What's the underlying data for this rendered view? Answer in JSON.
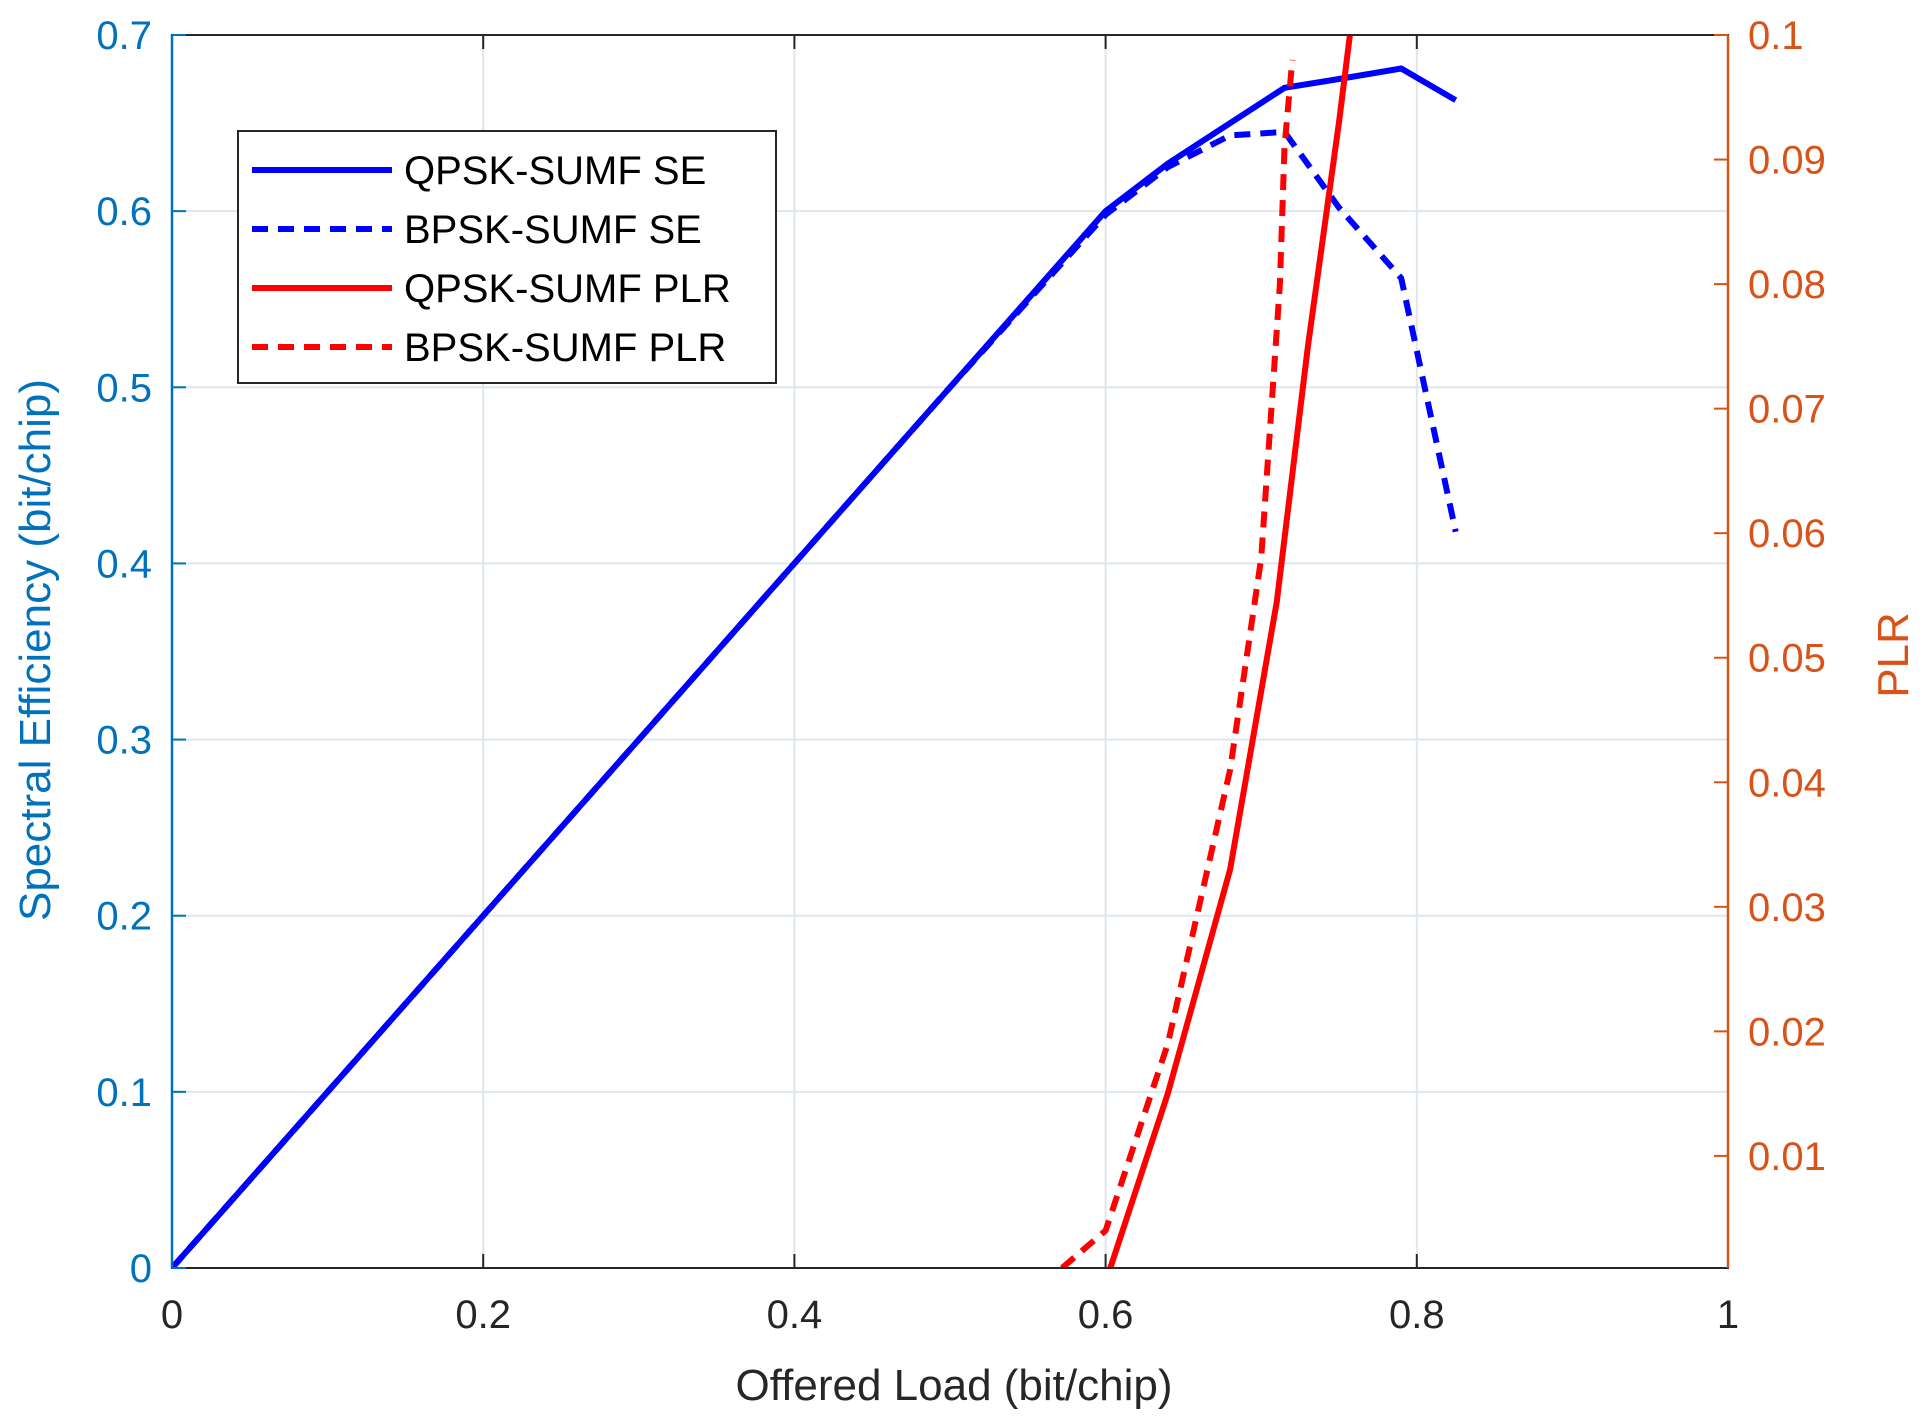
{
  "chart_data": {
    "type": "line",
    "title": "",
    "xlabel": "Offered Load (bit/chip)",
    "ylabel_left": "Spectral Efficiency (bit/chip)",
    "ylabel_right": "PLR",
    "xlim": [
      0,
      1
    ],
    "ylim_left": [
      0,
      0.7
    ],
    "ylim_right": [
      0.001,
      0.1
    ],
    "x_ticks": [
      "0",
      "0.2",
      "0.4",
      "0.6",
      "0.8",
      "1"
    ],
    "x_tick_values": [
      0,
      0.2,
      0.4,
      0.6,
      0.8,
      1
    ],
    "y_left_ticks": [
      "0",
      "0.1",
      "0.2",
      "0.3",
      "0.4",
      "0.5",
      "0.6",
      "0.7"
    ],
    "y_left_tick_values": [
      0,
      0.1,
      0.2,
      0.3,
      0.4,
      0.5,
      0.6,
      0.7
    ],
    "y_right_ticks": [
      "0.01",
      "0.02",
      "0.03",
      "0.04",
      "0.05",
      "0.06",
      "0.07",
      "0.08",
      "0.09",
      "0.1"
    ],
    "y_right_tick_values": [
      0.01,
      0.02,
      0.03,
      0.04,
      0.05,
      0.06,
      0.07,
      0.08,
      0.09,
      0.1
    ],
    "grid": true,
    "legend_position": "top-left",
    "colors": {
      "left_axis": "#0072bd",
      "right_axis": "#d95319",
      "se": "#0000ff",
      "plr": "#ff0000",
      "grid": "#dfe6ee",
      "frame": "#262626"
    },
    "series": [
      {
        "name": "QPSK-SUMF SE",
        "axis": "left",
        "style": "solid",
        "color": "#0000ff",
        "x": [
          0,
          0.1,
          0.2,
          0.3,
          0.4,
          0.5,
          0.6,
          0.64,
          0.68,
          0.715,
          0.75,
          0.79,
          0.825
        ],
        "y": [
          0,
          0.1,
          0.2,
          0.3,
          0.4,
          0.5,
          0.6,
          0.627,
          0.65,
          0.67,
          0.675,
          0.681,
          0.663
        ]
      },
      {
        "name": "BPSK-SUMF SE",
        "axis": "left",
        "style": "dashed",
        "color": "#0000ff",
        "x": [
          0,
          0.1,
          0.2,
          0.3,
          0.4,
          0.5,
          0.6,
          0.64,
          0.68,
          0.715,
          0.75,
          0.79,
          0.825
        ],
        "y": [
          0,
          0.1,
          0.2,
          0.3,
          0.4,
          0.5,
          0.598,
          0.625,
          0.643,
          0.645,
          0.602,
          0.562,
          0.418
        ]
      },
      {
        "name": "QPSK-SUMF PLR",
        "axis": "right",
        "style": "solid",
        "color": "#ff0000",
        "x": [
          0.603,
          0.64,
          0.68,
          0.71,
          0.73,
          0.75,
          0.757
        ],
        "y": [
          0.001,
          0.015,
          0.033,
          0.0545,
          0.075,
          0.093,
          0.1
        ]
      },
      {
        "name": "BPSK-SUMF PLR",
        "axis": "right",
        "style": "dashed",
        "color": "#ff0000",
        "x": [
          0.572,
          0.6,
          0.64,
          0.68,
          0.7,
          0.712,
          0.715,
          0.72
        ],
        "y": [
          0.001,
          0.004,
          0.019,
          0.041,
          0.058,
          0.08,
          0.091,
          0.098
        ]
      }
    ]
  }
}
